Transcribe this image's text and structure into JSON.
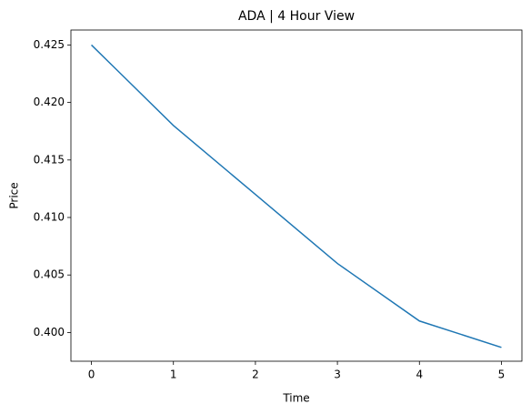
{
  "chart_data": {
    "type": "line",
    "title": "ADA | 4 Hour View",
    "x_label": "Time",
    "y_label": "Price",
    "x": [
      0,
      1,
      2,
      3,
      4,
      5
    ],
    "series": [
      {
        "color": "#1f77b4",
        "values": [
          0.425,
          0.418,
          0.412,
          0.406,
          0.401,
          0.3987
        ]
      }
    ],
    "xlim": [
      -0.25,
      5.25
    ],
    "xticks": [
      0,
      1,
      2,
      3,
      4,
      5
    ],
    "ylim": [
      0.3975,
      0.4263
    ],
    "yticks": [
      {
        "value": 0.4,
        "label": "0.400"
      },
      0.405,
      {
        "value": 0.41,
        "label": "0.410"
      },
      0.415,
      {
        "value": 0.42,
        "label": "0.420"
      },
      0.425
    ],
    "grid": false
  }
}
